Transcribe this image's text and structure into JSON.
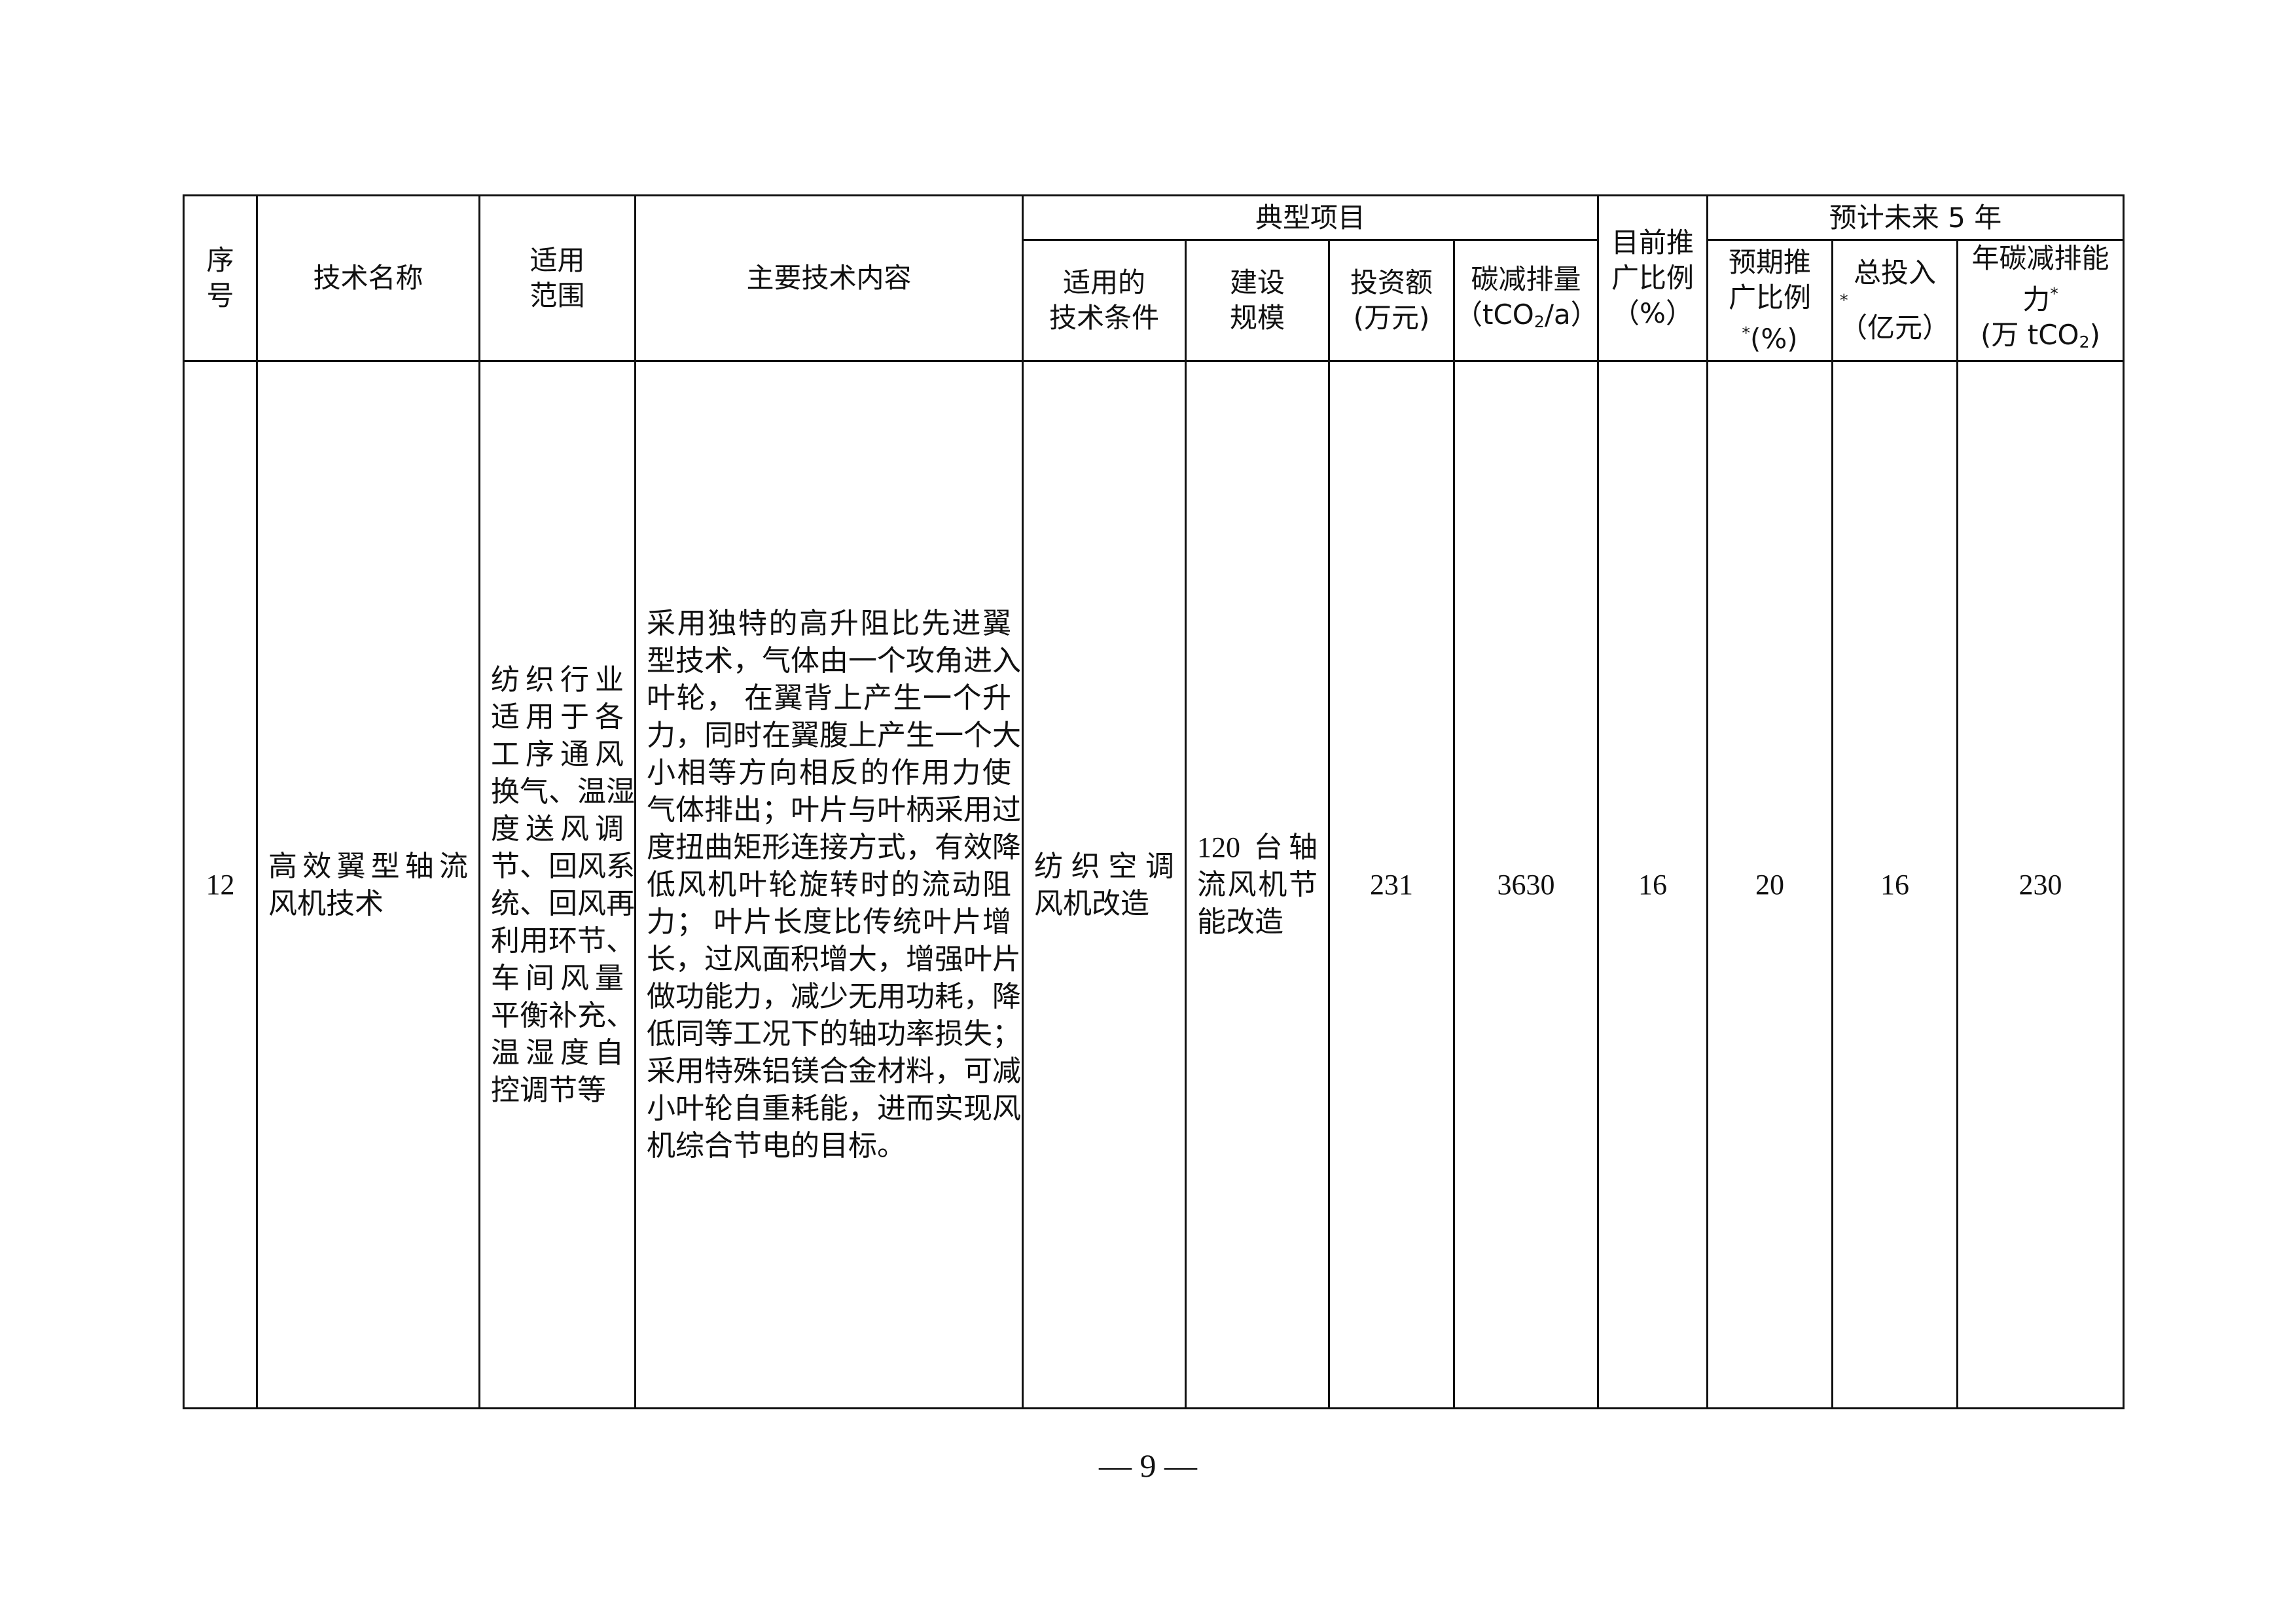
{
  "table": {
    "headers": {
      "seq": [
        "序",
        "号"
      ],
      "tech_name": "技术名称",
      "scope": [
        "适用",
        "范围"
      ],
      "content": "主要技术内容",
      "typical_project": "典型项目",
      "tp_conditions": [
        "适用的",
        "技术条件"
      ],
      "tp_scale": [
        "建设",
        "规模"
      ],
      "tp_investment": [
        "投资额",
        "(万元)"
      ],
      "tp_carbon": [
        "碳减排量",
        "（tCO",
        "2",
        "/a）"
      ],
      "current_ratio": [
        "目前推",
        "广比例",
        "（%）"
      ],
      "future5": "预计未来 5 年",
      "f_ratio": [
        "预期推",
        "广比例",
        "*",
        "(%)"
      ],
      "f_invest": [
        "总投入",
        "*",
        "（亿元）"
      ],
      "f_carbon": [
        "年碳减排能",
        "力",
        "*",
        "(万 tCO",
        "2",
        ")"
      ]
    },
    "row": {
      "seq": "12",
      "tech_name": [
        "高效翼型轴流",
        "风机技术"
      ],
      "scope": [
        "纺织行业",
        "适用于各",
        "工序通风",
        "换气、温湿",
        "度送风调",
        "节、回风系",
        "统、回风再",
        "利用环节、",
        "车间风量",
        "平衡补充、",
        "温湿度自",
        "控调节等"
      ],
      "content": [
        "采用独特的高升阻比先进翼",
        "型技术，气体由一个攻角进入",
        "叶轮， 在翼背上产生一个升",
        "力，同时在翼腹上产生一个大",
        "小相等方向相反的作用力使",
        "气体排出；叶片与叶柄采用过",
        "度扭曲矩形连接方式，有效降",
        "低风机叶轮旋转时的流动阻",
        "力； 叶片长度比传统叶片增",
        "长，过风面积增大，增强叶片",
        "做功能力，减少无用功耗，降",
        "低同等工况下的轴功率损失；",
        "采用特殊铝镁合金材料，可减",
        "小叶轮自重耗能，进而实现风",
        "机综合节电的目标。"
      ],
      "tp_conditions": [
        "纺织空调",
        "风机改造"
      ],
      "tp_scale": [
        "120 台轴",
        "流风机节",
        "能改造"
      ],
      "tp_investment": "231",
      "tp_carbon": "3630",
      "current_ratio": "16",
      "f_ratio": "20",
      "f_invest": "16",
      "f_carbon": "230"
    }
  },
  "page_number": "— 9 —"
}
